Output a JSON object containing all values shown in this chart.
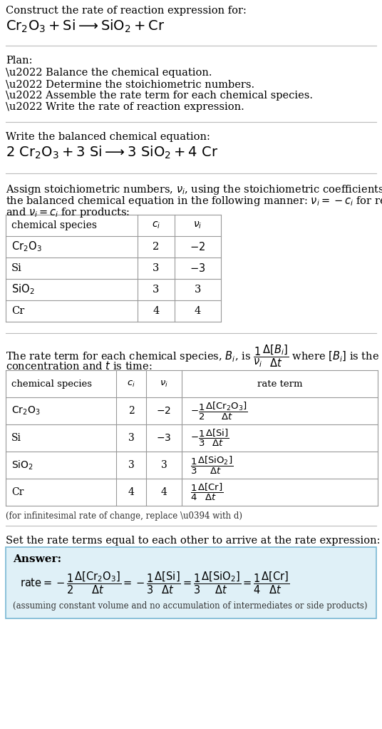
{
  "bg_color": "#ffffff",
  "separator_color": "#bbbbbb",
  "table_color": "#999999",
  "answer_bg": "#dff0f7",
  "answer_border": "#7ab8d4",
  "sections": {
    "header_line1": "Construct the rate of reaction expression for:",
    "header_line2_math": "$\\mathrm{Cr_2O_3 + Si \\longrightarrow SiO_2 + Cr}$",
    "plan_header": "Plan:",
    "plan_items": [
      "\\u2022 Balance the chemical equation.",
      "\\u2022 Determine the stoichiometric numbers.",
      "\\u2022 Assemble the rate term for each chemical species.",
      "\\u2022 Write the rate of reaction expression."
    ],
    "balanced_header": "Write the balanced chemical equation:",
    "balanced_math": "$\\mathrm{2\\ Cr_2O_3 + 3\\ Si \\longrightarrow 3\\ SiO_2 + 4\\ Cr}$",
    "stoich_line1": "Assign stoichiometric numbers, $\\nu_i$, using the stoichiometric coefficients, $c_i$, from",
    "stoich_line2": "the balanced chemical equation in the following manner: $\\nu_i = -c_i$ for reactants",
    "stoich_line3": "and $\\nu_i = c_i$ for products:",
    "table1_rows": [
      [
        "$\\mathrm{Cr_2O_3}$",
        "2",
        "$-2$"
      ],
      [
        "Si",
        "3",
        "$-3$"
      ],
      [
        "$\\mathrm{SiO_2}$",
        "3",
        "3"
      ],
      [
        "Cr",
        "4",
        "4"
      ]
    ],
    "rate_line1": "The rate term for each chemical species, $B_i$, is $\\dfrac{1}{\\nu_i}\\dfrac{\\Delta[B_i]}{\\Delta t}$ where $[B_i]$ is the amount",
    "rate_line2": "concentration and $t$ is time:",
    "table2_rows": [
      [
        "$\\mathrm{Cr_2O_3}$",
        "2",
        "$-2$",
        "$-\\dfrac{1}{2}\\dfrac{\\Delta[\\mathrm{Cr_2O_3}]}{\\Delta t}$"
      ],
      [
        "Si",
        "3",
        "$-3$",
        "$-\\dfrac{1}{3}\\dfrac{\\Delta[\\mathrm{Si}]}{\\Delta t}$"
      ],
      [
        "$\\mathrm{SiO_2}$",
        "3",
        "3",
        "$\\dfrac{1}{3}\\dfrac{\\Delta[\\mathrm{SiO_2}]}{\\Delta t}$"
      ],
      [
        "Cr",
        "4",
        "4",
        "$\\dfrac{1}{4}\\dfrac{\\Delta[\\mathrm{Cr}]}{\\Delta t}$"
      ]
    ],
    "infinitesimal": "(for infinitesimal rate of change, replace \\u0394 with d)",
    "set_equal": "Set the rate terms equal to each other to arrive at the rate expression:",
    "answer_label": "Answer:",
    "rate_expr": "$\\mathrm{rate} = -\\dfrac{1}{2}\\dfrac{\\Delta[\\mathrm{Cr_2O_3}]}{\\Delta t} = -\\dfrac{1}{3}\\dfrac{\\Delta[\\mathrm{Si}]}{\\Delta t} = \\dfrac{1}{3}\\dfrac{\\Delta[\\mathrm{SiO_2}]}{\\Delta t} = \\dfrac{1}{4}\\dfrac{\\Delta[\\mathrm{Cr}]}{\\Delta t}$",
    "assuming": "(assuming constant volume and no accumulation of intermediates or side products)"
  }
}
